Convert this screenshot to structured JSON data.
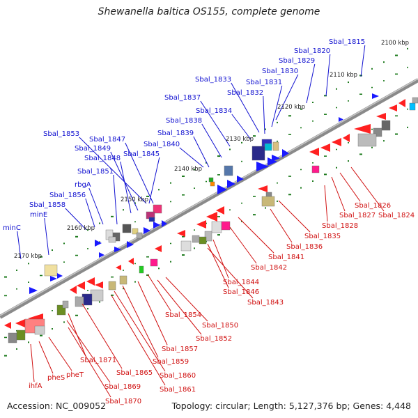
{
  "title": "Shewanella baltica OS155, complete genome",
  "footer": {
    "accession": "Accession: NC_009052",
    "topology": "Topology: circular; Length: 5,127,376 bp; Genes: 4,448"
  },
  "colors": {
    "forward_label": "#1010d0",
    "reverse_label": "#d01010",
    "forward_gene": "#1a1aff",
    "reverse_gene": "#ff1a1a",
    "backbone": "#888888",
    "tick": "#1d7a1d"
  },
  "ticks": [
    "2100 kbp",
    "2110 kbp",
    "2120 kbp",
    "2130 kbp",
    "2140 kbp",
    "2150 kbp",
    "2160 kbp",
    "2170 kbp"
  ],
  "forward_labels": [
    "Sbal_1815",
    "Sbal_1820",
    "Sbal_1829",
    "Sbal_1830",
    "Sbal_1831",
    "Sbal_1833",
    "Sbal_1832",
    "Sbal_1837",
    "Sbal_1834",
    "Sbal_1838",
    "Sbal_1839",
    "Sbal_1840",
    "Sbal_1853",
    "Sbal_1847",
    "Sbal_1849",
    "Sbal_1848",
    "Sbal_1845",
    "Sbal_1851",
    "rbgA",
    "Sbal_1856",
    "Sbal_1858",
    "minE",
    "minC"
  ],
  "reverse_labels": [
    "Sbal_1826",
    "Sbal_1827",
    "Sbal_1824",
    "Sbal_1828",
    "Sbal_1835",
    "Sbal_1836",
    "Sbal_1841",
    "Sbal_1842",
    "Sbal_1844",
    "Sbal_1846",
    "Sbal_1843",
    "Sbal_1854",
    "Sbal_1850",
    "Sbal_1852",
    "Sbal_1857",
    "Sbal_1859",
    "Sbal_1860",
    "Sbal_1861",
    "Sbal_1865",
    "Sbal_1871",
    "Sbal_1869",
    "Sbal_1870",
    "pheT",
    "pheS",
    "ihfA"
  ]
}
